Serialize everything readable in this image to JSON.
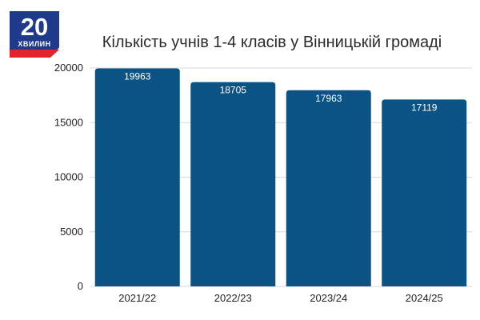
{
  "logo": {
    "number": "20",
    "word": "ХВИЛИН"
  },
  "colors": {
    "bar": "#0b5285",
    "grid": "#d9d9d9",
    "brand_blue": "#1f3a8a",
    "brand_red": "#e3232e"
  },
  "chart_data": {
    "type": "bar",
    "title": "Кількість учнів 1-4 класів у Вінницькій громаді",
    "categories": [
      "2021/22",
      "2022/23",
      "2023/24",
      "2024/25"
    ],
    "values": [
      19963,
      18705,
      17963,
      17119
    ],
    "data_labels": [
      "19963",
      "18705",
      "17963",
      "17119"
    ],
    "yticks": [
      0,
      5000,
      10000,
      15000,
      20000
    ],
    "ylim": [
      0,
      20000
    ],
    "xlabel": "",
    "ylabel": "",
    "grid": true,
    "legend": "none"
  }
}
